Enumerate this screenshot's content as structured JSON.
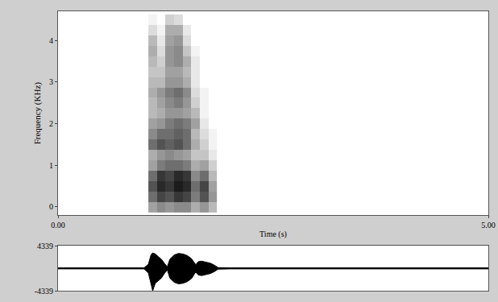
{
  "chart_data": [
    {
      "type": "heatmap",
      "xlabel": "Time (s)",
      "ylabel": "Frequency (KHz)",
      "xlim": [
        0,
        5
      ],
      "xticks": [
        {
          "value": 0,
          "label": "0.00"
        },
        {
          "value": 5,
          "label": "5.00"
        }
      ],
      "ylim": [
        -0.2,
        4.7
      ],
      "yticks": [
        0,
        1,
        2,
        3,
        4
      ],
      "x": [
        1.1,
        1.2,
        1.3,
        1.4,
        1.5,
        1.6,
        1.7,
        1.8
      ],
      "y": [
        0,
        0.25,
        0.5,
        0.75,
        1.0,
        1.25,
        1.5,
        1.75,
        2.0,
        2.25,
        2.5,
        2.75,
        3.0,
        3.25,
        3.5,
        3.75,
        4.0,
        4.25,
        4.5
      ],
      "zlim": [
        0,
        100
      ],
      "z": [
        [
          40,
          50,
          45,
          50,
          50,
          35,
          45,
          30
        ],
        [
          60,
          75,
          70,
          80,
          75,
          55,
          70,
          45
        ],
        [
          70,
          85,
          80,
          90,
          85,
          60,
          75,
          40
        ],
        [
          60,
          80,
          75,
          85,
          80,
          50,
          60,
          30
        ],
        [
          40,
          55,
          60,
          60,
          55,
          35,
          40,
          20
        ],
        [
          35,
          45,
          50,
          45,
          40,
          25,
          25,
          10
        ],
        [
          60,
          70,
          65,
          70,
          60,
          35,
          20,
          5
        ],
        [
          50,
          60,
          60,
          65,
          60,
          30,
          15,
          5
        ],
        [
          40,
          45,
          55,
          60,
          55,
          40,
          10,
          0
        ],
        [
          30,
          35,
          45,
          45,
          40,
          30,
          5,
          0
        ],
        [
          30,
          40,
          50,
          55,
          45,
          20,
          5,
          0
        ],
        [
          35,
          45,
          55,
          60,
          50,
          15,
          5,
          0
        ],
        [
          30,
          30,
          45,
          45,
          35,
          10,
          0,
          0
        ],
        [
          25,
          25,
          40,
          40,
          30,
          10,
          0,
          0
        ],
        [
          30,
          20,
          45,
          50,
          35,
          10,
          0,
          0
        ],
        [
          35,
          15,
          45,
          50,
          25,
          5,
          0,
          0
        ],
        [
          30,
          10,
          40,
          45,
          15,
          0,
          0,
          0
        ],
        [
          15,
          5,
          35,
          35,
          10,
          0,
          0,
          0
        ],
        [
          5,
          0,
          20,
          15,
          0,
          0,
          0,
          0
        ]
      ]
    },
    {
      "type": "line",
      "xlim": [
        0,
        5
      ],
      "ylim": [
        -4339,
        4339
      ],
      "yticks": [
        4339,
        -4339
      ],
      "tick_labels": "y",
      "color": "#000000",
      "x": [
        0,
        1.0,
        1.05,
        1.08,
        1.1,
        1.13,
        1.17,
        1.2,
        1.24,
        1.27,
        1.3,
        1.35,
        1.4,
        1.45,
        1.5,
        1.55,
        1.6,
        1.63,
        1.67,
        1.72,
        1.77,
        1.82,
        1.86,
        2.0,
        5.0
      ],
      "max": [
        100,
        100,
        800,
        2600,
        3000,
        2800,
        2200,
        1800,
        900,
        300,
        1800,
        2600,
        2900,
        2800,
        2500,
        1900,
        700,
        1300,
        1400,
        1200,
        1000,
        600,
        150,
        100,
        100
      ],
      "min": [
        -100,
        -100,
        -900,
        -2800,
        -4339,
        -2900,
        -2300,
        -1900,
        -900,
        -300,
        -1900,
        -2700,
        -3000,
        -2900,
        -2600,
        -2000,
        -700,
        -1300,
        -1400,
        -1200,
        -1000,
        -600,
        -150,
        -100,
        -100
      ]
    }
  ]
}
